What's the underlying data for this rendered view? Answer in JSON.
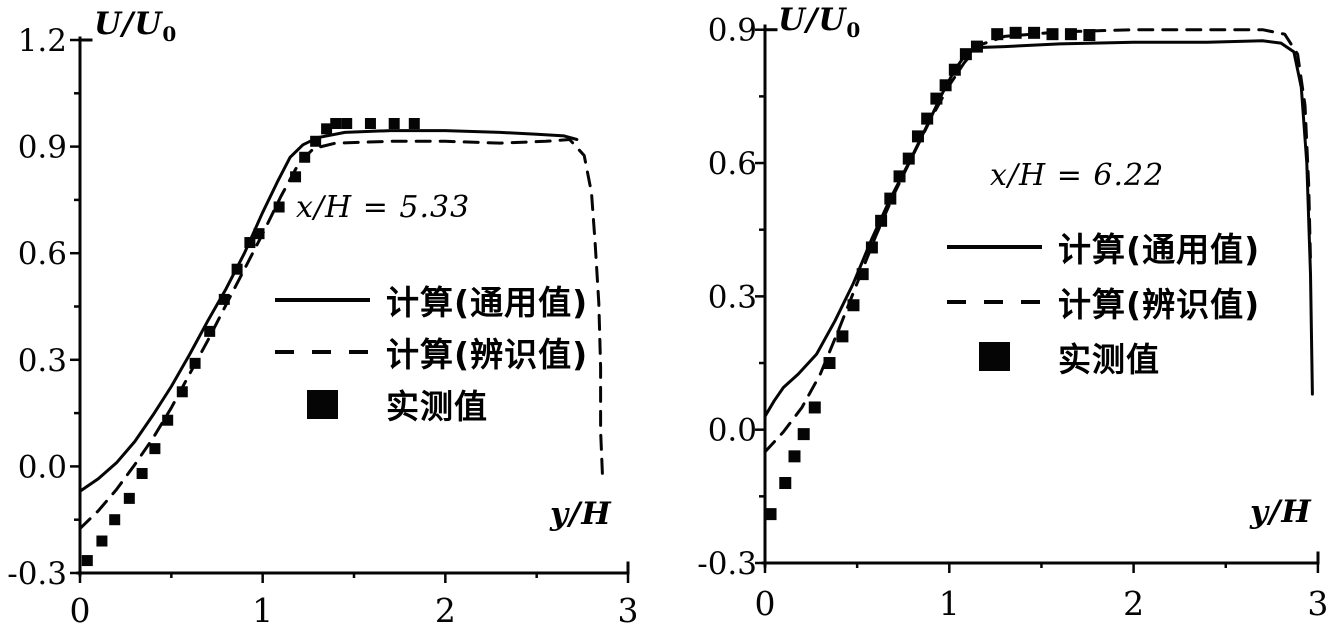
{
  "page": {
    "background": "#ffffff",
    "ink": "#050505"
  },
  "chart_data": [
    {
      "type": "line",
      "annotation": "x/H = 5.33",
      "xlabel": "y/H",
      "ylabel": "U/U0",
      "ylabel_main": "U/U",
      "ylabel_sub": "0",
      "xlim": [
        0,
        3
      ],
      "ylim": [
        -0.3,
        1.2
      ],
      "grid": false,
      "legend_position": "inside-center-right",
      "x_tick_values": [
        0,
        1,
        2,
        3
      ],
      "x_tick_labels": [
        "0",
        "1",
        "2",
        "3"
      ],
      "x_minor_ticks": [
        0.5,
        1.5,
        2.5
      ],
      "y_tick_values": [
        1.2,
        0.9,
        0.6,
        0.3,
        0.0,
        -0.3
      ],
      "y_tick_labels": [
        "1.2",
        "0.9",
        "0.6",
        "0.3",
        "0.0",
        "-0.3"
      ],
      "y_minor_ticks": [
        1.05,
        0.75,
        0.45,
        0.15,
        -0.15
      ],
      "legend": [
        {
          "marker": "solid-line",
          "label": "计算(通用值)"
        },
        {
          "marker": "dashed-line",
          "label": "计算(辨识值)"
        },
        {
          "marker": "filled-square",
          "label": "实测值"
        }
      ],
      "series": [
        {
          "name": "计算(通用值)",
          "style": "solid",
          "points": [
            [
              0,
              -0.07
            ],
            [
              0.1,
              -0.035
            ],
            [
              0.2,
              0.01
            ],
            [
              0.3,
              0.07
            ],
            [
              0.4,
              0.145
            ],
            [
              0.5,
              0.225
            ],
            [
              0.6,
              0.315
            ],
            [
              0.7,
              0.41
            ],
            [
              0.8,
              0.5
            ],
            [
              0.9,
              0.6
            ],
            [
              1.0,
              0.715
            ],
            [
              1.08,
              0.8
            ],
            [
              1.15,
              0.87
            ],
            [
              1.22,
              0.905
            ],
            [
              1.3,
              0.925
            ],
            [
              1.45,
              0.94
            ],
            [
              1.7,
              0.945
            ],
            [
              2.0,
              0.945
            ],
            [
              2.3,
              0.94
            ],
            [
              2.5,
              0.935
            ],
            [
              2.65,
              0.93
            ],
            [
              2.72,
              0.92
            ]
          ]
        },
        {
          "name": "计算(辨识值)",
          "style": "dashed",
          "points": [
            [
              0,
              -0.175
            ],
            [
              0.1,
              -0.125
            ],
            [
              0.2,
              -0.065
            ],
            [
              0.3,
              0.005
            ],
            [
              0.4,
              0.08
            ],
            [
              0.5,
              0.165
            ],
            [
              0.6,
              0.26
            ],
            [
              0.7,
              0.355
            ],
            [
              0.8,
              0.455
            ],
            [
              0.9,
              0.555
            ],
            [
              1.0,
              0.655
            ],
            [
              1.1,
              0.76
            ],
            [
              1.2,
              0.855
            ],
            [
              1.28,
              0.895
            ],
            [
              1.4,
              0.91
            ],
            [
              1.7,
              0.915
            ],
            [
              2.0,
              0.915
            ],
            [
              2.3,
              0.91
            ],
            [
              2.55,
              0.915
            ],
            [
              2.68,
              0.92
            ],
            [
              2.76,
              0.875
            ],
            [
              2.8,
              0.77
            ],
            [
              2.82,
              0.63
            ],
            [
              2.84,
              0.46
            ],
            [
              2.85,
              0.28
            ],
            [
              2.85,
              0.1
            ],
            [
              2.86,
              -0.02
            ]
          ]
        },
        {
          "name": "实测值",
          "style": "scatter-square",
          "points": [
            [
              0.04,
              -0.265
            ],
            [
              0.12,
              -0.21
            ],
            [
              0.19,
              -0.15
            ],
            [
              0.27,
              -0.09
            ],
            [
              0.34,
              -0.02
            ],
            [
              0.41,
              0.05
            ],
            [
              0.48,
              0.13
            ],
            [
              0.56,
              0.21
            ],
            [
              0.63,
              0.29
            ],
            [
              0.71,
              0.38
            ],
            [
              0.79,
              0.47
            ],
            [
              0.86,
              0.555
            ],
            [
              0.93,
              0.63
            ],
            [
              0.98,
              0.655
            ],
            [
              1.09,
              0.73
            ],
            [
              1.18,
              0.815
            ],
            [
              1.23,
              0.87
            ],
            [
              1.29,
              0.915
            ],
            [
              1.35,
              0.95
            ],
            [
              1.4,
              0.965
            ],
            [
              1.46,
              0.965
            ],
            [
              1.59,
              0.965
            ],
            [
              1.72,
              0.965
            ],
            [
              1.83,
              0.965
            ]
          ]
        }
      ]
    },
    {
      "type": "line",
      "annotation": "x/H = 6.22",
      "xlabel": "y/H",
      "ylabel": "U/U0",
      "ylabel_main": "U/U",
      "ylabel_sub": "0",
      "xlim": [
        0,
        3
      ],
      "ylim": [
        -0.3,
        0.9
      ],
      "grid": false,
      "legend_position": "inside-center-right",
      "x_tick_values": [
        0,
        1,
        2,
        3
      ],
      "x_tick_labels": [
        "0",
        "1",
        "2",
        "3"
      ],
      "x_minor_ticks": [
        0.5,
        1.5,
        2.5
      ],
      "y_tick_values": [
        0.9,
        0.6,
        0.3,
        0.0,
        -0.3
      ],
      "y_tick_labels": [
        "0.9",
        "0.6",
        "0.3",
        "0.0",
        "-0.3"
      ],
      "y_minor_ticks": [
        0.75,
        0.45,
        0.15,
        -0.15
      ],
      "legend": [
        {
          "marker": "solid-line",
          "label": "计算(通用值)"
        },
        {
          "marker": "dashed-line",
          "label": "计算(辨识值)"
        },
        {
          "marker": "filled-square",
          "label": "实测值"
        }
      ],
      "series": [
        {
          "name": "计算(通用值)",
          "style": "solid",
          "points": [
            [
              0,
              0.03
            ],
            [
              0.05,
              0.065
            ],
            [
              0.1,
              0.095
            ],
            [
              0.18,
              0.125
            ],
            [
              0.28,
              0.17
            ],
            [
              0.38,
              0.245
            ],
            [
              0.48,
              0.33
            ],
            [
              0.58,
              0.43
            ],
            [
              0.68,
              0.52
            ],
            [
              0.78,
              0.6
            ],
            [
              0.88,
              0.685
            ],
            [
              0.96,
              0.755
            ],
            [
              1.03,
              0.81
            ],
            [
              1.09,
              0.845
            ],
            [
              1.16,
              0.86
            ],
            [
              1.3,
              0.862
            ],
            [
              1.6,
              0.868
            ],
            [
              2.0,
              0.872
            ],
            [
              2.4,
              0.872
            ],
            [
              2.7,
              0.875
            ],
            [
              2.8,
              0.87
            ],
            [
              2.87,
              0.85
            ],
            [
              2.91,
              0.77
            ],
            [
              2.94,
              0.6
            ],
            [
              2.96,
              0.35
            ],
            [
              2.97,
              0.08
            ]
          ]
        },
        {
          "name": "计算(辨识值)",
          "style": "dashed",
          "points": [
            [
              0,
              -0.05
            ],
            [
              0.1,
              -0.005
            ],
            [
              0.2,
              0.05
            ],
            [
              0.3,
              0.125
            ],
            [
              0.4,
              0.225
            ],
            [
              0.5,
              0.33
            ],
            [
              0.6,
              0.435
            ],
            [
              0.7,
              0.53
            ],
            [
              0.8,
              0.615
            ],
            [
              0.9,
              0.7
            ],
            [
              1.0,
              0.775
            ],
            [
              1.08,
              0.825
            ],
            [
              1.16,
              0.865
            ],
            [
              1.3,
              0.885
            ],
            [
              1.6,
              0.895
            ],
            [
              2.0,
              0.9
            ],
            [
              2.4,
              0.9
            ],
            [
              2.7,
              0.9
            ],
            [
              2.82,
              0.89
            ],
            [
              2.89,
              0.845
            ],
            [
              2.93,
              0.73
            ],
            [
              2.95,
              0.55
            ],
            [
              2.96,
              0.38
            ]
          ]
        },
        {
          "name": "实测值",
          "style": "scatter-square",
          "points": [
            [
              0.03,
              -0.19
            ],
            [
              0.11,
              -0.12
            ],
            [
              0.16,
              -0.06
            ],
            [
              0.21,
              -0.01
            ],
            [
              0.27,
              0.05
            ],
            [
              0.35,
              0.15
            ],
            [
              0.42,
              0.21
            ],
            [
              0.48,
              0.28
            ],
            [
              0.53,
              0.35
            ],
            [
              0.58,
              0.41
            ],
            [
              0.63,
              0.47
            ],
            [
              0.68,
              0.52
            ],
            [
              0.73,
              0.57
            ],
            [
              0.78,
              0.61
            ],
            [
              0.83,
              0.66
            ],
            [
              0.88,
              0.7
            ],
            [
              0.93,
              0.745
            ],
            [
              0.98,
              0.775
            ],
            [
              1.03,
              0.81
            ],
            [
              1.09,
              0.845
            ],
            [
              1.15,
              0.862
            ],
            [
              1.26,
              0.89
            ],
            [
              1.36,
              0.893
            ],
            [
              1.46,
              0.893
            ],
            [
              1.56,
              0.89
            ],
            [
              1.66,
              0.89
            ],
            [
              1.76,
              0.888
            ]
          ]
        }
      ]
    }
  ]
}
